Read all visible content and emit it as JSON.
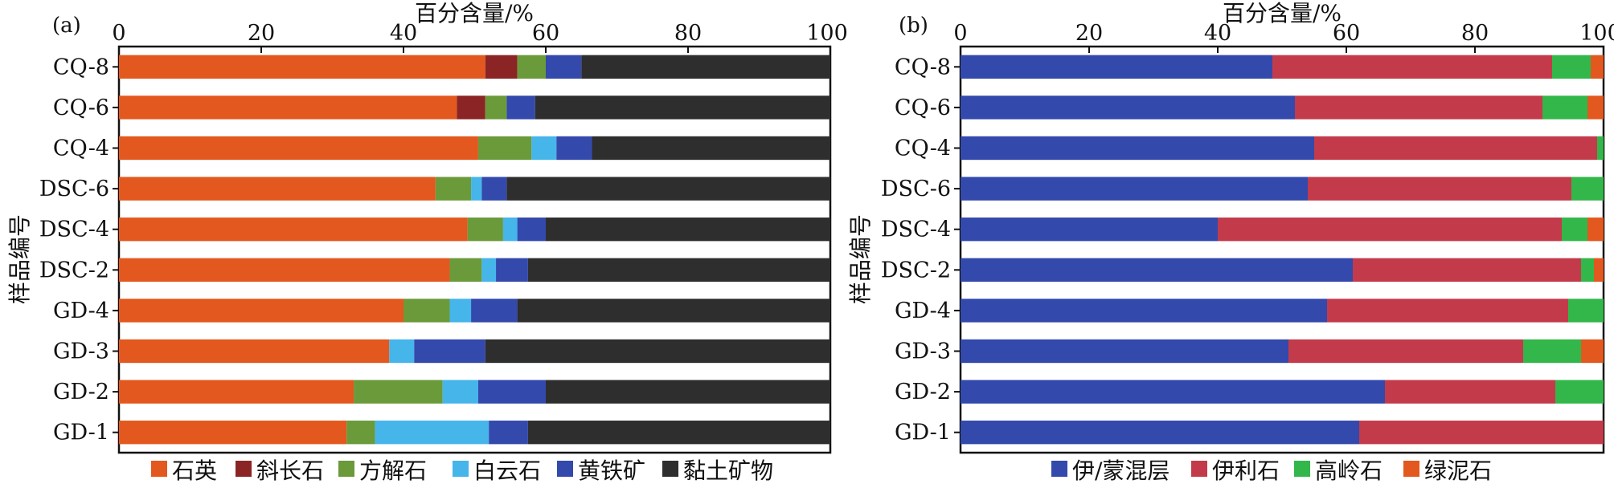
{
  "chart_data": [
    {
      "type": "bar",
      "orientation": "horizontal",
      "stacked": true,
      "panel_label": "(a)",
      "xlabel": "百分含量/%",
      "ylabel": "样品编号",
      "xlim": [
        0,
        100
      ],
      "xticks": [
        "0",
        "20",
        "40",
        "60",
        "80",
        "100"
      ],
      "categories": [
        "CQ-8",
        "CQ-6",
        "CQ-4",
        "DSC-6",
        "DSC-4",
        "DSC-2",
        "GD-4",
        "GD-3",
        "GD-2",
        "GD-1"
      ],
      "series": [
        {
          "name": "石英",
          "color": "#E3581E",
          "values": [
            51.5,
            47.5,
            50.5,
            44.5,
            49,
            46.5,
            40,
            38,
            33,
            32
          ]
        },
        {
          "name": "斜长石",
          "color": "#8B2525",
          "values": [
            4.5,
            4,
            0,
            0,
            0,
            0,
            0,
            0,
            0,
            0
          ]
        },
        {
          "name": "方解石",
          "color": "#6A9A3A",
          "values": [
            4,
            3,
            7.5,
            5,
            5,
            4.5,
            6.5,
            0,
            12.5,
            4
          ]
        },
        {
          "name": "白云石",
          "color": "#45B5EA",
          "values": [
            0,
            0,
            3.5,
            1.5,
            2,
            2,
            3,
            3.5,
            5,
            16
          ]
        },
        {
          "name": "黄铁矿",
          "color": "#3349AC",
          "values": [
            5,
            4,
            5,
            3.5,
            4,
            4.5,
            6.5,
            10,
            9.5,
            5.5
          ]
        },
        {
          "name": "黏土矿物",
          "color": "#2E2E2E",
          "values": [
            35,
            41.5,
            33.5,
            45.5,
            40,
            42.5,
            44,
            48.5,
            40,
            42.5
          ]
        }
      ]
    },
    {
      "type": "bar",
      "orientation": "horizontal",
      "stacked": true,
      "panel_label": "(b)",
      "xlabel": "百分含量/%",
      "ylabel": "样品编号",
      "xlim": [
        0,
        100
      ],
      "xticks": [
        "0",
        "20",
        "40",
        "60",
        "80",
        "100"
      ],
      "categories": [
        "CQ-8",
        "CQ-6",
        "CQ-4",
        "DSC-6",
        "DSC-4",
        "DSC-2",
        "GD-4",
        "GD-3",
        "GD-2",
        "GD-1"
      ],
      "series": [
        {
          "name": "伊/蒙混层",
          "color": "#3349AC",
          "values": [
            48.5,
            52,
            55,
            54,
            40,
            61,
            57,
            51,
            66,
            62
          ]
        },
        {
          "name": "伊利石",
          "color": "#C33B4B",
          "values": [
            43.5,
            38.5,
            44,
            41,
            53.5,
            35.5,
            37.5,
            36.5,
            26.5,
            38
          ]
        },
        {
          "name": "高岭石",
          "color": "#33B74A",
          "values": [
            6,
            7,
            1,
            5,
            4,
            2,
            5.5,
            9,
            7.5,
            0
          ]
        },
        {
          "name": "绿泥石",
          "color": "#E3581E",
          "values": [
            2,
            2.5,
            0,
            0,
            2.5,
            1.5,
            0,
            3.5,
            0,
            0
          ]
        }
      ]
    }
  ]
}
